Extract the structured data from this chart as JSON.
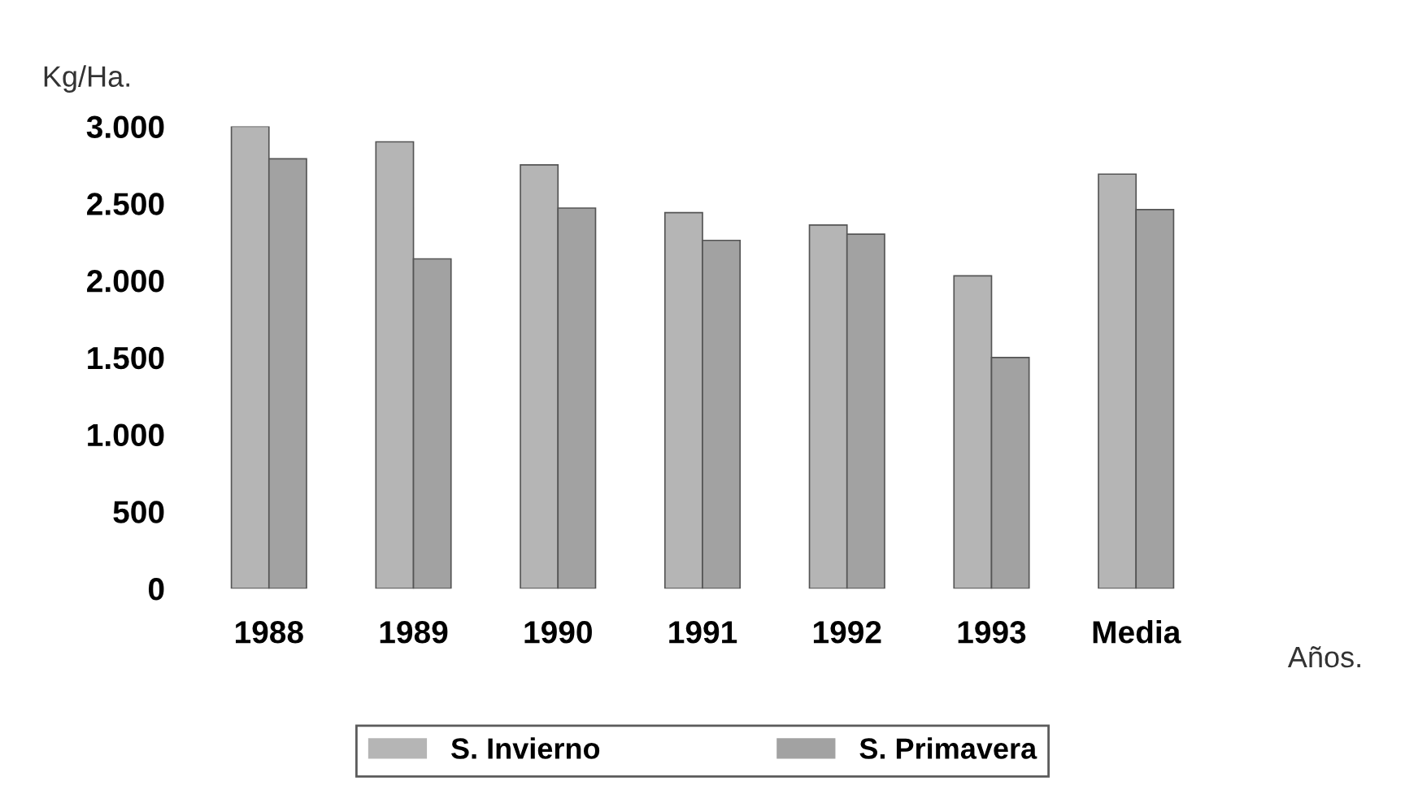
{
  "chart_data": {
    "type": "bar",
    "ylabel": "Kg/Ha.",
    "xlabel": "Años.",
    "categories": [
      "1988",
      "1989",
      "1990",
      "1991",
      "1992",
      "1993",
      "Media"
    ],
    "series": [
      {
        "name": "S. Invierno",
        "color": "#b5b5b5",
        "values": [
          3000,
          2900,
          2750,
          2440,
          2360,
          2030,
          2690
        ]
      },
      {
        "name": "S. Primavera",
        "color": "#a2a2a2",
        "values": [
          2790,
          2140,
          2470,
          2260,
          2300,
          1500,
          2460
        ]
      }
    ],
    "ylim": [
      0,
      3000
    ],
    "yticks": [
      {
        "value": 0,
        "label": "0"
      },
      {
        "value": 500,
        "label": "500"
      },
      {
        "value": 1000,
        "label": "1.000"
      },
      {
        "value": 1500,
        "label": "1.500"
      },
      {
        "value": 2000,
        "label": "2.000"
      },
      {
        "value": 2500,
        "label": "2.500"
      },
      {
        "value": 3000,
        "label": "3.000"
      }
    ],
    "grid": false,
    "legend": "bottom"
  }
}
